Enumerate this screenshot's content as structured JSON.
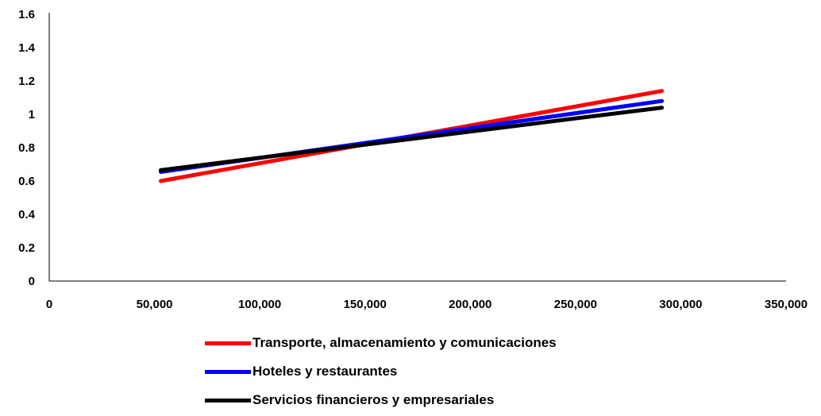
{
  "chart_data": {
    "type": "line",
    "xlim": [
      0,
      350000
    ],
    "ylim": [
      0,
      1.6
    ],
    "x_ticks": [
      "0",
      "50,000",
      "100,000",
      "150,000",
      "200,000",
      "250,000",
      "300,000",
      "350,000"
    ],
    "y_ticks": [
      "0",
      "0.2",
      "0.4",
      "0.6",
      "0.8",
      "1",
      "1.2",
      "1.4",
      "1.6"
    ],
    "grid": false,
    "legend_position": "bottom",
    "series": [
      {
        "name": "Transporte, almacenamiento y comunicaciones",
        "color": "#ff0000",
        "x": [
          53000,
          291000
        ],
        "y": [
          0.6,
          1.14
        ]
      },
      {
        "name": "Hoteles y restaurantes",
        "color": "#0000ff",
        "x": [
          53000,
          291000
        ],
        "y": [
          0.655,
          1.08
        ]
      },
      {
        "name": "Servicios financieros y empresariales",
        "color": "#000000",
        "x": [
          53000,
          291000
        ],
        "y": [
          0.665,
          1.04
        ]
      }
    ]
  }
}
